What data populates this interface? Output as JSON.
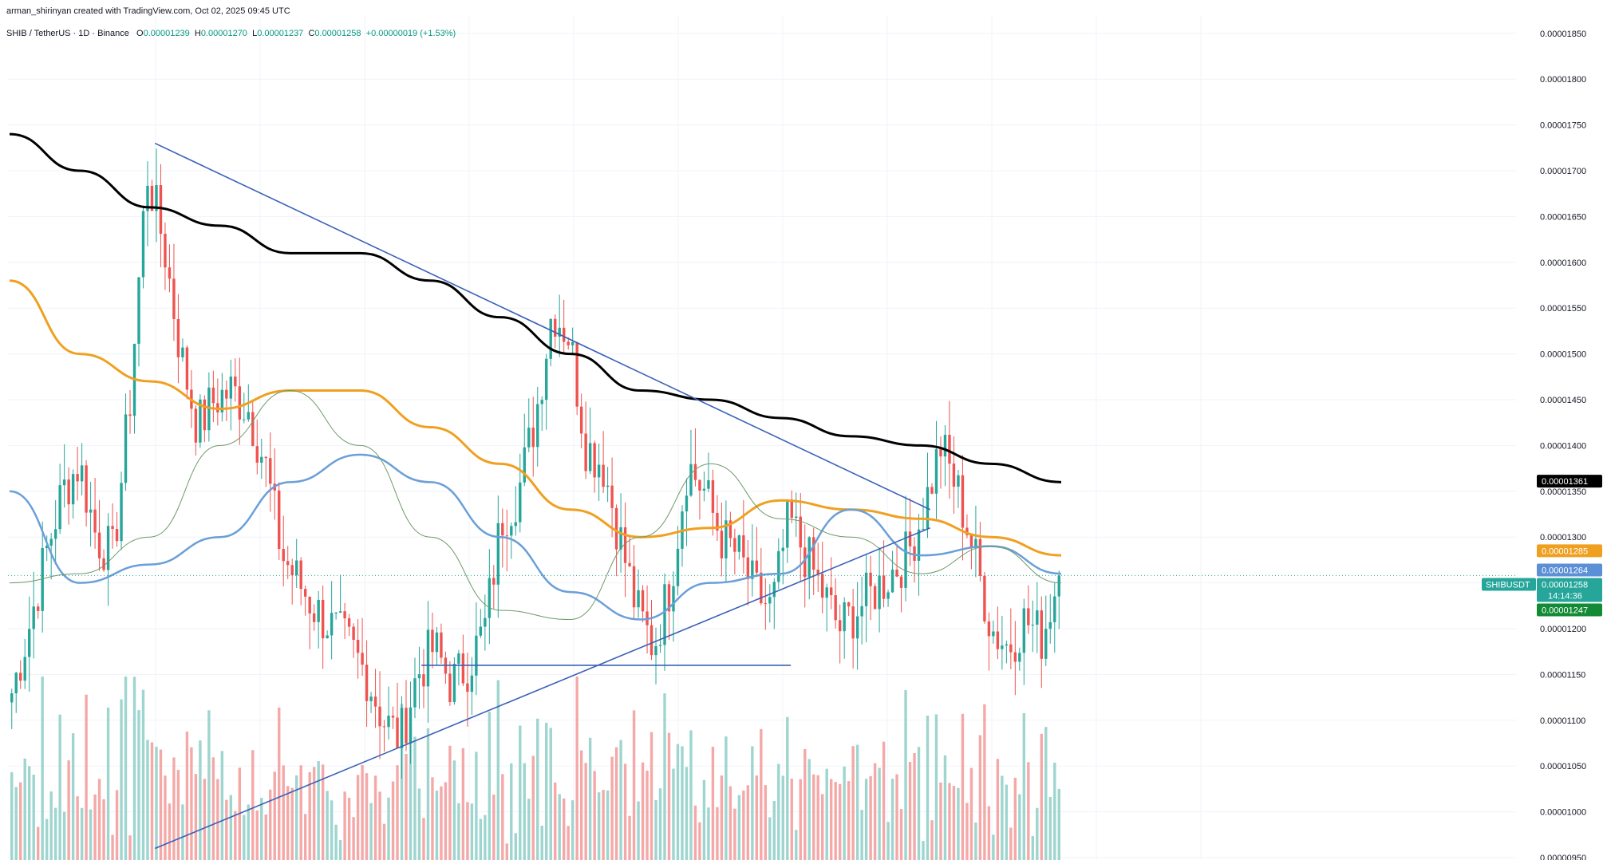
{
  "header": {
    "credit": "arman_shirinyan created with TradingView.com, Oct 02, 2025 09:45 UTC",
    "symbol": "SHIB / TetherUS · 1D · Binance",
    "ohlc": {
      "o_label": "O",
      "o": "0.00001239",
      "h_label": "H",
      "h": "0.00001270",
      "l_label": "L",
      "l": "0.00001237",
      "c_label": "C",
      "c": "0.00001258",
      "change": "+0.00000019 (+1.53%)"
    }
  },
  "colors": {
    "up": "#26a69a",
    "down": "#ef5350",
    "vol_up": "#9fd5cf",
    "vol_down": "#f4a9a8",
    "ma_black": "#000000",
    "ma_orange": "#f0a020",
    "ma_blue": "#6a9fd8",
    "ma_thin": "#6f9a6a",
    "trend": "#3a62b8",
    "grid": "#f0f3fa"
  },
  "price_labels": [
    {
      "name": "ma-black-label",
      "text": "0.00001361",
      "value": 1.361e-05,
      "bg": "#000000"
    },
    {
      "name": "ma-orange-label",
      "text": "0.00001285",
      "value": 1.285e-05,
      "bg": "#f0a020"
    },
    {
      "name": "ma-blue-label",
      "text": "0.00001264",
      "value": 1.264e-05,
      "bg": "#5b8fd6"
    },
    {
      "name": "last-price-label",
      "text": "0.00001258",
      "value": 1.258e-05,
      "bg": "#26a69a",
      "symbol": "SHIBUSDT",
      "countdown": "14:14:36"
    },
    {
      "name": "ma-thin-label",
      "text": "0.00001247",
      "value": 1.247e-05,
      "bg": "#138a36"
    }
  ],
  "chart_data": {
    "type": "candlestick",
    "y_axis": {
      "position": "right",
      "min": 9.5e-06,
      "max": 1.85e-05,
      "ticks": [
        "0.00000950",
        "0.00001000",
        "0.00001050",
        "0.00001100",
        "0.00001150",
        "0.00001200",
        "0.00001250",
        "0.00001300",
        "0.00001350",
        "0.00001400",
        "0.00001450",
        "0.00001500",
        "0.00001550",
        "0.00001600",
        "0.00001650",
        "0.00001700",
        "0.00001750",
        "0.00001800",
        "0.00001850"
      ]
    },
    "grid": true,
    "bar_count": 240,
    "key_closes": [
      1.13e-05,
      1.2e-05,
      1.28e-05,
      1.35e-05,
      1.38e-05,
      1.3e-05,
      1.28e-05,
      1.45e-05,
      1.7e-05,
      1.62e-05,
      1.5e-05,
      1.42e-05,
      1.45e-05,
      1.46e-05,
      1.44e-05,
      1.38e-05,
      1.28e-05,
      1.25e-05,
      1.22e-05,
      1.2e-05,
      1.18e-05,
      1.15e-05,
      1.1e-05,
      1.08e-05,
      1.15e-05,
      1.18e-05,
      1.14e-05,
      1.16e-05,
      1.2e-05,
      1.32e-05,
      1.35e-05,
      1.43e-05,
      1.55e-05,
      1.52e-05,
      1.4e-05,
      1.38e-05,
      1.3e-05,
      1.22e-05,
      1.18e-05,
      1.25e-05,
      1.38e-05,
      1.35e-05,
      1.3e-05,
      1.28e-05,
      1.24e-05,
      1.22e-05,
      1.32e-05,
      1.28e-05,
      1.24e-05,
      1.2e-05,
      1.22e-05,
      1.24e-05,
      1.26e-05,
      1.28e-05,
      1.33e-05,
      1.4e-05,
      1.35e-05,
      1.28e-05,
      1.2e-05,
      1.18e-05,
      1.21e-05,
      1.19e-05,
      1.26e-05
    ],
    "moving_averages": [
      {
        "color_key": "ma_black",
        "width": 3,
        "points": [
          1.74e-05,
          1.7e-05,
          1.66e-05,
          1.64e-05,
          1.61e-05,
          1.61e-05,
          1.58e-05,
          1.54e-05,
          1.5e-05,
          1.46e-05,
          1.45e-05,
          1.43e-05,
          1.41e-05,
          1.4e-05,
          1.38e-05,
          1.36e-05
        ]
      },
      {
        "color_key": "ma_orange",
        "width": 3,
        "points": [
          1.58e-05,
          1.5e-05,
          1.47e-05,
          1.44e-05,
          1.46e-05,
          1.46e-05,
          1.42e-05,
          1.38e-05,
          1.33e-05,
          1.3e-05,
          1.31e-05,
          1.34e-05,
          1.33e-05,
          1.32e-05,
          1.3e-05,
          1.28e-05
        ]
      },
      {
        "color_key": "ma_blue",
        "width": 2.5,
        "points": [
          1.35e-05,
          1.25e-05,
          1.27e-05,
          1.3e-05,
          1.36e-05,
          1.39e-05,
          1.36e-05,
          1.3e-05,
          1.24e-05,
          1.21e-05,
          1.25e-05,
          1.26e-05,
          1.33e-05,
          1.28e-05,
          1.29e-05,
          1.26e-05
        ]
      },
      {
        "color_key": "ma_thin",
        "width": 1,
        "points": [
          1.25e-05,
          1.26e-05,
          1.3e-05,
          1.4e-05,
          1.46e-05,
          1.4e-05,
          1.3e-05,
          1.22e-05,
          1.21e-05,
          1.3e-05,
          1.38e-05,
          1.32e-05,
          1.3e-05,
          1.26e-05,
          1.29e-05,
          1.25e-05
        ]
      }
    ],
    "trendlines": [
      {
        "name": "descending-resistance",
        "from": [
          0.12,
          1.73e-05
        ],
        "to": [
          0.76,
          1.33e-05
        ]
      },
      {
        "name": "ascending-support",
        "from": [
          0.12,
          9.6e-06
        ],
        "to": [
          0.76,
          1.31e-05
        ]
      },
      {
        "name": "horizontal-support",
        "from": [
          0.34,
          1.16e-05
        ],
        "to": [
          0.645,
          1.16e-05
        ]
      }
    ],
    "last_price": 1.258e-05
  }
}
